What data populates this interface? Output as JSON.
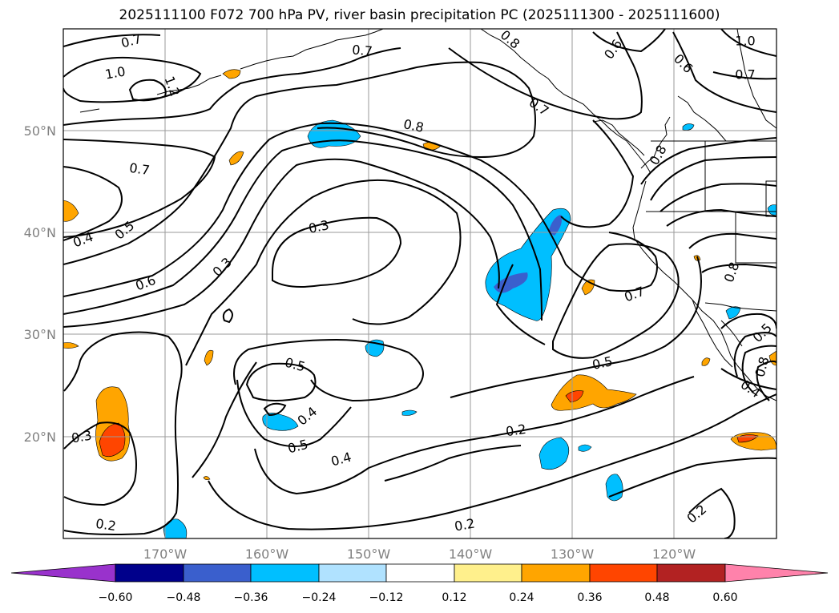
{
  "title": "2025111100 F072 700 hPa PV, river basin precipitation PC (2025111300 - 2025111600)",
  "map": {
    "lon_ticks": [
      "170°W",
      "160°W",
      "150°W",
      "140°W",
      "130°W",
      "120°W"
    ],
    "lat_ticks": [
      "50°N",
      "40°N",
      "30°N",
      "20°N"
    ],
    "gridlines": true,
    "coastline_color": "#000000",
    "contour_color": "#000000"
  },
  "contour_labels": [
    {
      "text": "0.7"
    },
    {
      "text": "1.0"
    },
    {
      "text": "1.2"
    },
    {
      "text": "0.7"
    },
    {
      "text": "0.6"
    },
    {
      "text": "0.8"
    },
    {
      "text": "0.7"
    },
    {
      "text": "1.0"
    },
    {
      "text": "0.7"
    },
    {
      "text": "0.7"
    },
    {
      "text": "0.8"
    },
    {
      "text": "0.6"
    },
    {
      "text": "0.8"
    },
    {
      "text": "0.4"
    },
    {
      "text": "0.5"
    },
    {
      "text": "0.6"
    },
    {
      "text": "0.3"
    },
    {
      "text": "0.3"
    },
    {
      "text": "0.7"
    },
    {
      "text": "0.8"
    },
    {
      "text": "0.5"
    },
    {
      "text": "0.5"
    },
    {
      "text": "0.8"
    },
    {
      "text": "0.4"
    },
    {
      "text": "0.5"
    },
    {
      "text": "0.4"
    },
    {
      "text": "0.5"
    },
    {
      "text": "0.4"
    },
    {
      "text": "0.2"
    },
    {
      "text": "0.3"
    },
    {
      "text": "0.2"
    },
    {
      "text": "0.2"
    },
    {
      "text": "0.2"
    }
  ],
  "colorbar": {
    "ticks": [
      "−0.60",
      "−0.48",
      "−0.36",
      "−0.24",
      "−0.12",
      "0.12",
      "0.24",
      "0.36",
      "0.48",
      "0.60"
    ],
    "colors": [
      "#9932cc",
      "#00008b",
      "#3a5fcd",
      "#00bfff",
      "#b0e2ff",
      "#ffffff",
      "#fff08c",
      "#ffa500",
      "#ff4500",
      "#b22222",
      "#ff82ab"
    ]
  }
}
